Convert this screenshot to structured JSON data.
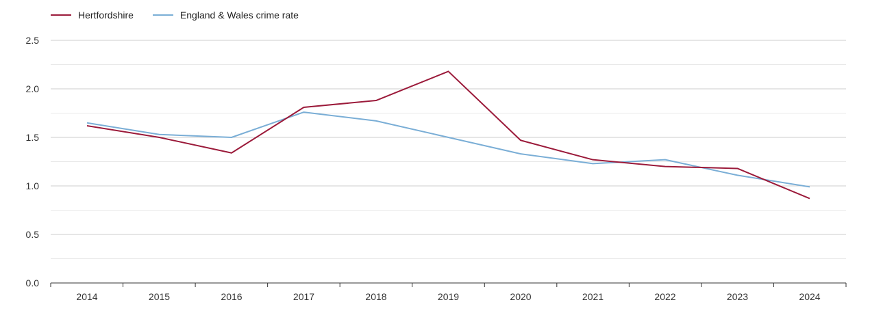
{
  "chart_data": {
    "type": "line",
    "categories": [
      "2014",
      "2015",
      "2016",
      "2017",
      "2018",
      "2019",
      "2020",
      "2021",
      "2022",
      "2023",
      "2024"
    ],
    "series": [
      {
        "name": "Hertfordshire",
        "color": "#9b1a3a",
        "values": [
          1.62,
          1.5,
          1.34,
          1.81,
          1.88,
          2.18,
          1.47,
          1.27,
          1.2,
          1.18,
          0.87
        ]
      },
      {
        "name": "England & Wales crime rate",
        "color": "#7aaed6",
        "values": [
          1.65,
          1.53,
          1.5,
          1.76,
          1.67,
          1.5,
          1.33,
          1.23,
          1.27,
          1.11,
          0.99
        ]
      }
    ],
    "ylim": [
      0,
      2.5
    ],
    "yticks": [
      "0.0",
      "0.5",
      "1.0",
      "1.5",
      "2.0",
      "2.5"
    ],
    "grid": true,
    "legend_position": "top-left",
    "title": "",
    "xlabel": "",
    "ylabel": ""
  }
}
